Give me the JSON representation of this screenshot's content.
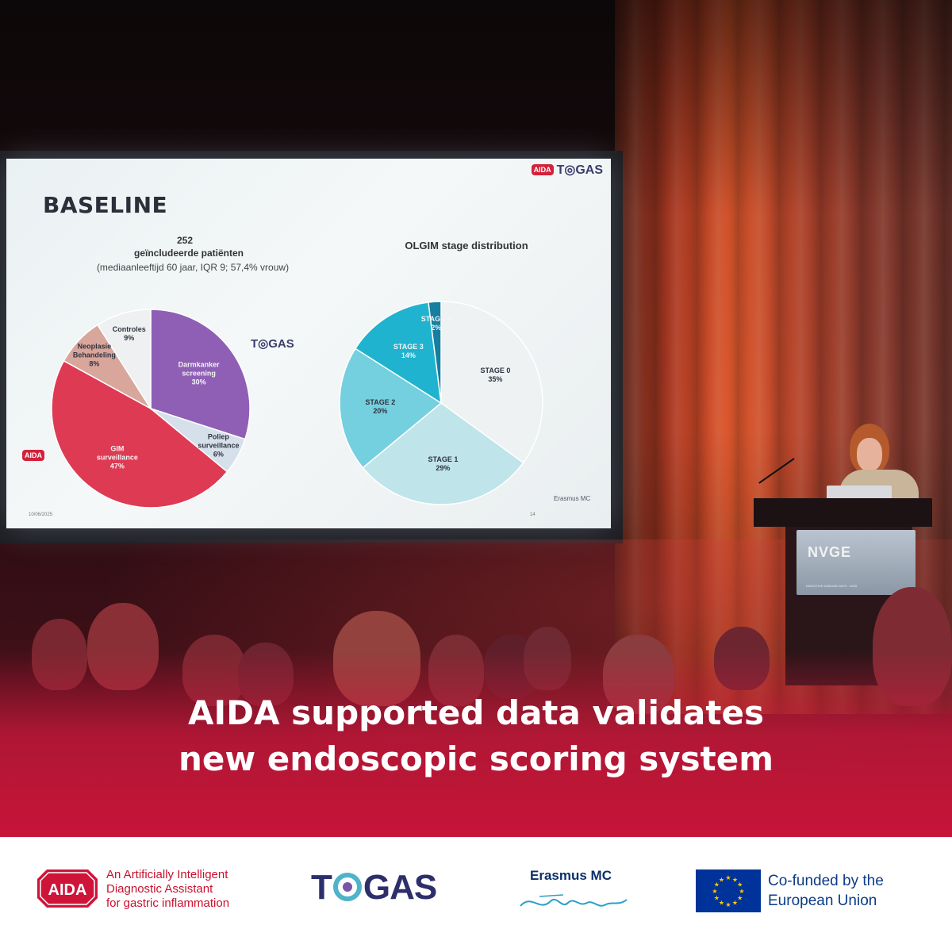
{
  "headline": {
    "line1": "AIDA supported data validates",
    "line2": "new endoscopic scoring system"
  },
  "slide": {
    "title": "BASELINE",
    "logo_top_aida": "AIDA",
    "logo_top_togas": "T◎GAS",
    "stat_count": "252",
    "stat_label": "geïncludeerde patiënten",
    "stat_detail": "(mediaanleeftijd 60 jaar, IQR 9; 57,4% vrouw)",
    "olgim_title": "OLGIM stage distribution",
    "side_logo_togas": "T◎GAS",
    "side_logo_aida": "AIDA",
    "date": "10/06/2025",
    "page": "14",
    "erasmus": "Erasmus MC"
  },
  "chart_data": [
    {
      "type": "pie",
      "title": "252 geïncludeerde patiënten",
      "categories": [
        "Darmkanker screening",
        "Poliep surveillance",
        "GIM surveillance",
        "Neoplasie Behandeling",
        "Controles"
      ],
      "values": [
        30,
        6,
        47,
        8,
        9
      ],
      "labels": [
        "Darmkanker\nscreening\n30%",
        "Poliep\nsurveillance\n6%",
        "GIM\nsurveillance\n47%",
        "Neoplasie\nBehandeling\n8%",
        "Controles\n9%"
      ],
      "colors": [
        "#8f5fb5",
        "#d6e0ea",
        "#de3a53",
        "#d9a69c",
        "#eef0f2"
      ]
    },
    {
      "type": "pie",
      "title": "OLGIM stage distribution",
      "categories": [
        "STAGE 0",
        "STAGE 1",
        "STAGE 2",
        "STAGE 3",
        "STAGE 4"
      ],
      "values": [
        35,
        29,
        20,
        14,
        2
      ],
      "labels": [
        "STAGE 0\n35%",
        "STAGE 1\n29%",
        "STAGE 2\n20%",
        "STAGE 3\n14%",
        "STAGE 4\n2%"
      ],
      "colors": [
        "#eef2f3",
        "#bfe4ea",
        "#74cfdf",
        "#1fb3cf",
        "#167fa0"
      ]
    }
  ],
  "podium": {
    "sign": "NVGE",
    "sub": "DIGESTIVE DISEASE DAYS · 2025"
  },
  "footer": {
    "aida_logo": "AIDA",
    "aida_tagline": [
      "An Artificially Intelligent",
      "Diagnostic Assistant",
      "for gastric inflammation"
    ],
    "togas_left": "T",
    "togas_right": "GAS",
    "erasmus_name": "Erasmus MC",
    "eu_text": [
      "Co-funded by the",
      "European Union"
    ]
  },
  "colors": {
    "brand_red": "#cf143a",
    "togas_navy": "#2d2f6b",
    "eu_blue": "#003399",
    "eu_star": "#ffcc00"
  }
}
